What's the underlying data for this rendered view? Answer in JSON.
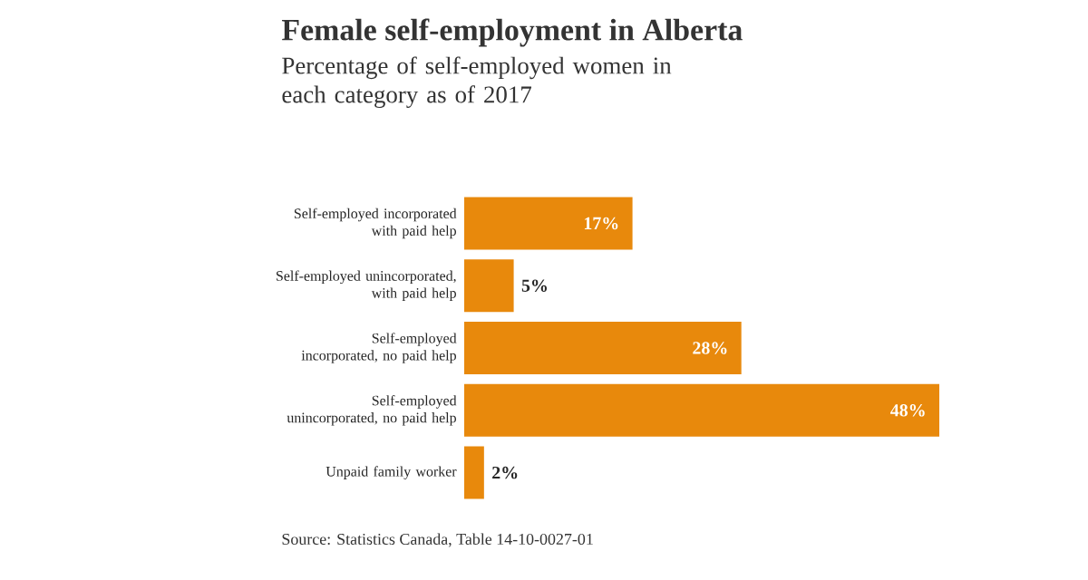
{
  "chart_data": {
    "type": "bar",
    "orientation": "horizontal",
    "title": "Female self-employment in Alberta",
    "subtitle": "Percentage of self-employed women in each category as of 2017",
    "categories": [
      "Self-employed incorporated with paid help",
      "Self-employed unincorporated, with paid help",
      "Self-employed incorporated, no paid help",
      "Self-employed unincorporated, no paid help",
      "Unpaid family worker"
    ],
    "values": [
      17,
      5,
      28,
      48,
      2
    ],
    "value_labels": [
      "17%",
      "5%",
      "28%",
      "48%",
      "2%"
    ],
    "color": "#e8890c",
    "annotations": [
      "Source: Statistics Canada, Table 14-10-0027-01"
    ]
  }
}
